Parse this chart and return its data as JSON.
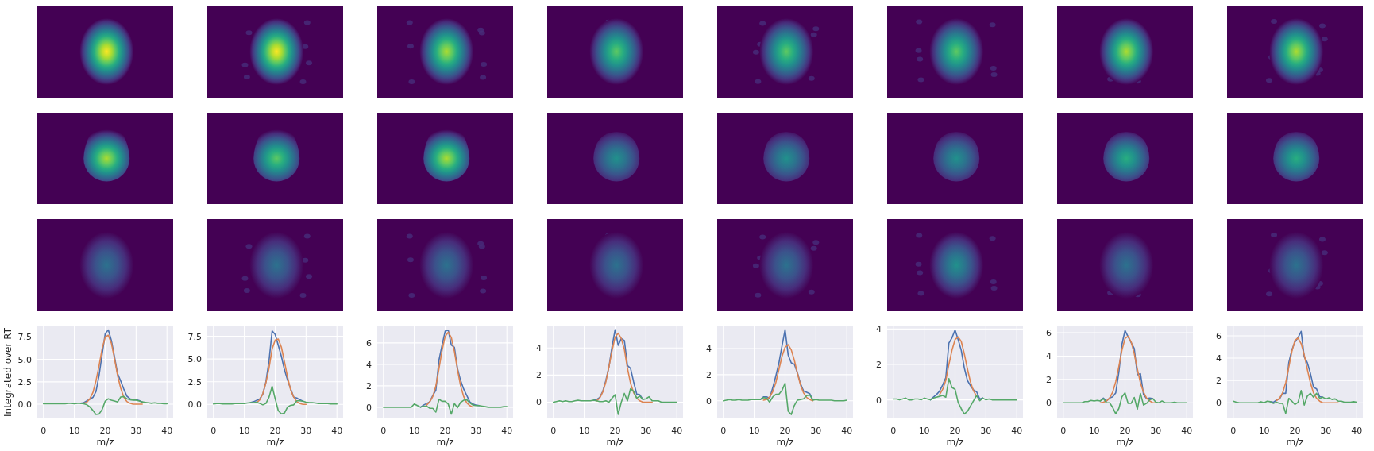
{
  "chart_data": [
    {
      "type": "line",
      "xlabel": "m/z",
      "ylabel": "Integrated over RT",
      "grid": true,
      "xlim": [
        -2,
        42
      ],
      "xticks": [
        0,
        10,
        20,
        30,
        40
      ],
      "ylim": [
        -1.6,
        8.7
      ],
      "yticks": [
        {
          "value": 0,
          "label": "0.0"
        },
        {
          "value": 2.5,
          "label": "2.5"
        },
        {
          "value": 5,
          "label": "5.0"
        },
        {
          "value": 7.5,
          "label": "7.5"
        }
      ],
      "x": [
        0,
        1,
        2,
        3,
        4,
        5,
        6,
        7,
        8,
        9,
        10,
        11,
        12,
        13,
        14,
        15,
        16,
        17,
        18,
        19,
        20,
        21,
        22,
        23,
        24,
        25,
        26,
        27,
        28,
        29,
        30,
        31,
        32,
        33,
        34,
        35,
        36,
        37,
        38,
        39,
        40
      ],
      "series": [
        {
          "color": "#4c72b0",
          "values": [
            null,
            null,
            null,
            null,
            null,
            null,
            null,
            null,
            null,
            null,
            null,
            null,
            0.1,
            0.15,
            0.35,
            0.55,
            0.75,
            1.4,
            3.2,
            5.6,
            7.9,
            8.3,
            7.1,
            5.3,
            3.4,
            2.6,
            1.7,
            0.9,
            0.6,
            0.5,
            0.5,
            0.4,
            0.25,
            null,
            null,
            null,
            null,
            null,
            null,
            null,
            null
          ]
        },
        {
          "color": "#dd8452",
          "values": [
            null,
            null,
            null,
            null,
            null,
            null,
            null,
            null,
            null,
            null,
            null,
            null,
            null,
            0.1,
            0.2,
            0.6,
            1.3,
            2.6,
            4.3,
            6.2,
            7.5,
            7.7,
            6.8,
            5.1,
            3.2,
            1.8,
            0.8,
            0.3,
            0.1,
            0,
            0,
            0,
            0,
            null,
            null,
            null,
            null,
            null,
            null,
            null,
            null
          ]
        },
        {
          "color": "#55a868",
          "values": [
            0.05,
            0.05,
            0.05,
            0.05,
            0.05,
            0.05,
            0.05,
            0.05,
            0.1,
            0.1,
            0.05,
            0.1,
            0.1,
            0.05,
            -0.05,
            -0.3,
            -0.7,
            -1.15,
            -1.1,
            -0.6,
            0.35,
            0.6,
            0.45,
            0.35,
            0.25,
            0.8,
            0.85,
            0.6,
            0.5,
            0.45,
            0.45,
            0.35,
            0.25,
            0.2,
            0.15,
            0.1,
            0.15,
            0.1,
            0.1,
            0.05,
            0.05
          ]
        }
      ]
    },
    {
      "type": "line",
      "xlabel": "m/z",
      "grid": true,
      "xlim": [
        -2,
        42
      ],
      "xticks": [
        0,
        10,
        20,
        30,
        40
      ],
      "ylim": [
        -1.55,
        8.6
      ],
      "yticks": [
        {
          "value": 0,
          "label": "0.0"
        },
        {
          "value": 2.5,
          "label": "2.5"
        },
        {
          "value": 5,
          "label": "5.0"
        },
        {
          "value": 7.5,
          "label": "7.5"
        }
      ],
      "x": [
        0,
        1,
        2,
        3,
        4,
        5,
        6,
        7,
        8,
        9,
        10,
        11,
        12,
        13,
        14,
        15,
        16,
        17,
        18,
        19,
        20,
        21,
        22,
        23,
        24,
        25,
        26,
        27,
        28,
        29,
        30,
        31,
        32,
        33,
        34,
        35,
        36,
        37,
        38,
        39,
        40
      ],
      "series": [
        {
          "color": "#4c72b0",
          "values": [
            null,
            null,
            null,
            null,
            null,
            null,
            null,
            null,
            null,
            null,
            null,
            null,
            0.2,
            0.3,
            0.45,
            0.6,
            1.15,
            2.5,
            4.8,
            8.1,
            7.7,
            6.5,
            5.3,
            3.8,
            2.7,
            1.7,
            0.8,
            0.7,
            0.5,
            0.35,
            null,
            null,
            null,
            null,
            null,
            null,
            null,
            null,
            null,
            null,
            null
          ]
        },
        {
          "color": "#dd8452",
          "values": [
            null,
            null,
            null,
            null,
            null,
            null,
            null,
            null,
            null,
            null,
            null,
            null,
            null,
            null,
            0.2,
            0.5,
            1.2,
            2.4,
            4.0,
            6.1,
            7.1,
            7.2,
            6.3,
            4.7,
            3.0,
            1.6,
            0.8,
            0.3,
            0.1,
            0,
            0,
            null,
            null,
            null,
            null,
            null,
            null,
            null,
            null,
            null,
            null
          ]
        },
        {
          "color": "#55a868",
          "values": [
            0.05,
            0.1,
            0.1,
            0.05,
            0.05,
            0.05,
            0.05,
            0.1,
            0.1,
            0.1,
            0.1,
            0.15,
            0.2,
            0.2,
            0.25,
            0.1,
            -0.05,
            0.1,
            0.8,
            2.0,
            0.6,
            -0.7,
            -1.05,
            -0.95,
            -0.3,
            -0.1,
            -0.05,
            0.4,
            0.4,
            0.35,
            0.25,
            0.2,
            0.2,
            0.15,
            0.1,
            0.1,
            0.1,
            0.1,
            0.05,
            0.05,
            0.05
          ]
        }
      ]
    },
    {
      "type": "line",
      "xlabel": "m/z",
      "grid": true,
      "xlim": [
        -2,
        42
      ],
      "xticks": [
        0,
        10,
        20,
        30,
        40
      ],
      "ylim": [
        -1.05,
        7.55
      ],
      "yticks": [
        0,
        2,
        4,
        6
      ],
      "x": [
        0,
        1,
        2,
        3,
        4,
        5,
        6,
        7,
        8,
        9,
        10,
        11,
        12,
        13,
        14,
        15,
        16,
        17,
        18,
        19,
        20,
        21,
        22,
        23,
        24,
        25,
        26,
        27,
        28,
        29,
        30,
        31,
        32,
        33,
        34,
        35,
        36,
        37,
        38,
        39,
        40
      ],
      "series": [
        {
          "color": "#4c72b0",
          "values": [
            null,
            null,
            null,
            null,
            null,
            null,
            null,
            null,
            null,
            null,
            null,
            null,
            0,
            0.2,
            0.35,
            0.5,
            1.1,
            1.6,
            4.4,
            5.8,
            7.1,
            7.2,
            5.8,
            5.6,
            3.6,
            2.5,
            1.7,
            1.1,
            0.5,
            0.3,
            0.2,
            0.15,
            null,
            null,
            null,
            null,
            null,
            null,
            null,
            null,
            null
          ]
        },
        {
          "color": "#dd8452",
          "values": [
            null,
            null,
            null,
            null,
            null,
            null,
            null,
            null,
            null,
            null,
            null,
            null,
            null,
            null,
            0.2,
            0.5,
            1.0,
            2.0,
            3.6,
            5.3,
            6.6,
            7.0,
            6.5,
            5.2,
            3.5,
            2.0,
            1.0,
            0.4,
            0.15,
            0,
            null,
            null,
            null,
            null,
            null,
            null,
            null,
            null,
            null,
            null,
            null
          ]
        },
        {
          "color": "#55a868",
          "values": [
            0,
            0,
            0,
            0,
            0,
            0,
            0,
            0,
            0,
            0,
            0.3,
            0.15,
            0,
            0.1,
            0.1,
            -0.1,
            -0.1,
            -0.45,
            0.75,
            0.55,
            0.55,
            0.3,
            -0.65,
            0.35,
            -0.05,
            0.45,
            0.65,
            0.7,
            0.4,
            0.2,
            0.15,
            0.15,
            0.1,
            0.05,
            0,
            0,
            0,
            0,
            0,
            0.05,
            0.05
          ]
        }
      ]
    },
    {
      "type": "line",
      "xlabel": "m/z",
      "grid": true,
      "xlim": [
        -2,
        42
      ],
      "xticks": [
        0,
        10,
        20,
        30,
        40
      ],
      "ylim": [
        -1.2,
        5.6
      ],
      "yticks": [
        0,
        2,
        4
      ],
      "x": [
        0,
        1,
        2,
        3,
        4,
        5,
        6,
        7,
        8,
        9,
        10,
        11,
        12,
        13,
        14,
        15,
        16,
        17,
        18,
        19,
        20,
        21,
        22,
        23,
        24,
        25,
        26,
        27,
        28,
        29,
        30,
        31,
        32,
        33,
        34,
        35,
        36,
        37,
        38,
        39,
        40
      ],
      "series": [
        {
          "color": "#4c72b0",
          "values": [
            null,
            null,
            null,
            null,
            null,
            null,
            null,
            null,
            null,
            null,
            null,
            null,
            null,
            0.15,
            0.2,
            0.35,
            0.8,
            1.6,
            2.6,
            4.1,
            5.35,
            4.2,
            4.7,
            4.55,
            2.7,
            2.5,
            1.5,
            0.6,
            0.55,
            0.2,
            null,
            null,
            null,
            null,
            null,
            null,
            null,
            null,
            null,
            null,
            null
          ]
        },
        {
          "color": "#dd8452",
          "values": [
            null,
            null,
            null,
            null,
            null,
            null,
            null,
            null,
            null,
            null,
            null,
            null,
            null,
            null,
            0.1,
            0.3,
            0.75,
            1.5,
            2.6,
            3.8,
            4.8,
            5.1,
            4.7,
            3.9,
            2.5,
            1.4,
            0.7,
            0.3,
            0.1,
            0,
            0,
            0,
            0,
            null,
            null,
            null,
            null,
            null,
            null,
            null,
            null
          ]
        },
        {
          "color": "#55a868",
          "values": [
            0,
            0.05,
            0.1,
            0.05,
            0.1,
            0.05,
            0.05,
            0.1,
            0.15,
            0.1,
            0.1,
            0.1,
            0.1,
            0.15,
            0.1,
            0.05,
            0.05,
            0.1,
            0,
            0.3,
            0.55,
            -0.9,
            0,
            0.65,
            0.1,
            1.0,
            0.8,
            0.3,
            0.45,
            0.2,
            0.25,
            0.4,
            0.1,
            0.1,
            0.1,
            0,
            0,
            0,
            0,
            0,
            0
          ]
        }
      ]
    },
    {
      "type": "line",
      "xlabel": "m/z",
      "grid": true,
      "xlim": [
        -2,
        42
      ],
      "xticks": [
        0,
        10,
        20,
        30,
        40
      ],
      "ylim": [
        -1.35,
        5.7
      ],
      "yticks": [
        0,
        2,
        4
      ],
      "x": [
        0,
        1,
        2,
        3,
        4,
        5,
        6,
        7,
        8,
        9,
        10,
        11,
        12,
        13,
        14,
        15,
        16,
        17,
        18,
        19,
        20,
        21,
        22,
        23,
        24,
        25,
        26,
        27,
        28,
        29,
        30,
        31,
        32,
        33,
        34,
        35,
        36,
        37,
        38,
        39,
        40
      ],
      "series": [
        {
          "color": "#4c72b0",
          "values": [
            null,
            null,
            null,
            null,
            null,
            null,
            null,
            null,
            null,
            null,
            null,
            null,
            0.1,
            0.3,
            0.3,
            0.2,
            1.0,
            1.9,
            2.9,
            4.2,
            5.45,
            3.5,
            2.9,
            2.8,
            2.15,
            1.3,
            0.75,
            0.65,
            0.55,
            0.05,
            null,
            null,
            null,
            null,
            null,
            null,
            null,
            null,
            null,
            null,
            null
          ]
        },
        {
          "color": "#dd8452",
          "values": [
            null,
            null,
            null,
            null,
            null,
            null,
            null,
            null,
            null,
            null,
            null,
            null,
            null,
            0.05,
            0.1,
            0.3,
            0.7,
            1.4,
            2.4,
            3.4,
            4.1,
            4.3,
            3.9,
            3.1,
            2.1,
            1.2,
            0.6,
            0.25,
            0.1,
            0,
            null,
            null,
            null,
            null,
            null,
            null,
            null,
            null,
            null,
            null,
            null
          ]
        },
        {
          "color": "#55a868",
          "values": [
            0,
            0.05,
            0.1,
            0.05,
            0.05,
            0.1,
            0.05,
            0.05,
            0.05,
            0.1,
            0.1,
            0.1,
            0.1,
            0.25,
            0.2,
            -0.1,
            0.3,
            0.5,
            0.5,
            0.8,
            1.35,
            -0.8,
            -1.05,
            -0.35,
            0.05,
            0.1,
            0.15,
            0.4,
            0.45,
            0.05,
            0.1,
            0.05,
            0.05,
            0.05,
            0.05,
            0.05,
            0,
            0,
            0,
            0,
            0.05
          ]
        }
      ]
    },
    {
      "type": "line",
      "xlabel": "m/z",
      "grid": true,
      "xlim": [
        -2,
        42
      ],
      "xticks": [
        0,
        10,
        20,
        30,
        40
      ],
      "ylim": [
        -1.05,
        4.15
      ],
      "yticks": [
        0,
        2,
        4
      ],
      "x": [
        0,
        1,
        2,
        3,
        4,
        5,
        6,
        7,
        8,
        9,
        10,
        11,
        12,
        13,
        14,
        15,
        16,
        17,
        18,
        19,
        20,
        21,
        22,
        23,
        24,
        25,
        26,
        27,
        28,
        29,
        30,
        31,
        32,
        33,
        34,
        35,
        36,
        37,
        38,
        39,
        40
      ],
      "series": [
        {
          "color": "#4c72b0",
          "values": [
            null,
            null,
            null,
            null,
            null,
            null,
            null,
            null,
            null,
            null,
            null,
            null,
            0,
            0.15,
            0.3,
            0.5,
            0.85,
            1.25,
            3.2,
            3.5,
            3.95,
            3.4,
            2.8,
            1.8,
            1.1,
            0.8,
            0.55,
            0.45,
            0.05,
            0.1,
            null,
            null,
            null,
            null,
            null,
            null,
            null,
            null,
            null,
            null,
            null
          ]
        },
        {
          "color": "#dd8452",
          "values": [
            null,
            null,
            null,
            null,
            null,
            null,
            null,
            null,
            null,
            null,
            null,
            null,
            null,
            null,
            null,
            0.3,
            0.6,
            1.1,
            2.0,
            2.8,
            3.4,
            3.55,
            3.3,
            2.6,
            1.75,
            1.0,
            0.5,
            0.2,
            null,
            null,
            null,
            null,
            null,
            null,
            null,
            null,
            null,
            null,
            null,
            null,
            null
          ]
        },
        {
          "color": "#55a868",
          "values": [
            0.05,
            0.05,
            0,
            0.05,
            0.1,
            0,
            0,
            0.05,
            0.05,
            0,
            0.1,
            0.05,
            0,
            0.1,
            0.15,
            0.2,
            0.25,
            0.15,
            1.2,
            0.7,
            0.6,
            -0.15,
            -0.5,
            -0.8,
            -0.65,
            -0.35,
            -0.05,
            0.25,
            -0.05,
            0.1,
            0,
            0.05,
            0,
            0,
            0,
            0,
            0,
            0,
            0,
            0,
            0
          ]
        }
      ]
    },
    {
      "type": "line",
      "xlabel": "m/z",
      "grid": true,
      "xlim": [
        -2,
        42
      ],
      "xticks": [
        0,
        10,
        20,
        30,
        40
      ],
      "ylim": [
        -1.35,
        6.55
      ],
      "yticks": [
        0,
        2,
        4,
        6
      ],
      "x": [
        0,
        1,
        2,
        3,
        4,
        5,
        6,
        7,
        8,
        9,
        10,
        11,
        12,
        13,
        14,
        15,
        16,
        17,
        18,
        19,
        20,
        21,
        22,
        23,
        24,
        25,
        26,
        27,
        28,
        29,
        30,
        31,
        32,
        33,
        34,
        35,
        36,
        37,
        38,
        39,
        40
      ],
      "series": [
        {
          "color": "#4c72b0",
          "values": [
            null,
            null,
            null,
            null,
            null,
            null,
            null,
            null,
            null,
            null,
            null,
            null,
            0.15,
            0.4,
            0.15,
            0.4,
            0.5,
            0.85,
            2.6,
            5.0,
            6.2,
            5.65,
            5.15,
            4.65,
            2.4,
            2.5,
            0.7,
            0.35,
            0.4,
            0.35,
            null,
            null,
            null,
            null,
            null,
            null,
            null,
            null,
            null,
            null,
            null
          ]
        },
        {
          "color": "#dd8452",
          "values": [
            null,
            null,
            null,
            null,
            null,
            null,
            null,
            null,
            null,
            null,
            null,
            null,
            0,
            0.05,
            0.15,
            0.4,
            0.9,
            1.8,
            3.1,
            4.5,
            5.5,
            5.7,
            5.2,
            4.2,
            2.9,
            1.7,
            0.9,
            0.4,
            0.15,
            0,
            0,
            null,
            null,
            null,
            null,
            null,
            null,
            null,
            null,
            null,
            null
          ]
        },
        {
          "color": "#55a868",
          "values": [
            0,
            0,
            0,
            0,
            0,
            0,
            0,
            0.1,
            0.1,
            0.2,
            0.15,
            0.2,
            0.15,
            0.35,
            0,
            0,
            -0.4,
            -0.95,
            -0.5,
            0.5,
            0.85,
            -0.05,
            -0.05,
            0.45,
            -0.55,
            0.8,
            -0.2,
            -0.05,
            0.25,
            0.35,
            0.05,
            0,
            0.15,
            0,
            0,
            0,
            0.05,
            0,
            0,
            0,
            0
          ]
        }
      ]
    },
    {
      "type": "line",
      "xlabel": "m/z",
      "grid": true,
      "xlim": [
        -2,
        42
      ],
      "xticks": [
        0,
        10,
        20,
        30,
        40
      ],
      "ylim": [
        -1.4,
        6.85
      ],
      "yticks": [
        0,
        2,
        4,
        6
      ],
      "x": [
        0,
        1,
        2,
        3,
        4,
        5,
        6,
        7,
        8,
        9,
        10,
        11,
        12,
        13,
        14,
        15,
        16,
        17,
        18,
        19,
        20,
        21,
        22,
        23,
        24,
        25,
        26,
        27,
        28,
        29,
        30,
        31,
        32,
        33,
        34,
        35,
        36,
        37,
        38,
        39,
        40
      ],
      "series": [
        {
          "color": "#4c72b0",
          "values": [
            null,
            null,
            null,
            null,
            null,
            null,
            null,
            null,
            null,
            null,
            null,
            null,
            0.1,
            0.05,
            0.25,
            0.35,
            0.85,
            0.85,
            3.6,
            4.75,
            5.45,
            5.85,
            6.4,
            4.1,
            3.6,
            2.65,
            1.4,
            1.25,
            0.55,
            0.5,
            null,
            null,
            null,
            null,
            null,
            null,
            null,
            null,
            null,
            null,
            null
          ]
        },
        {
          "color": "#dd8452",
          "values": [
            null,
            null,
            null,
            null,
            null,
            null,
            null,
            null,
            null,
            null,
            null,
            null,
            null,
            null,
            0.2,
            0.4,
            0.9,
            1.8,
            3.2,
            4.6,
            5.6,
            5.8,
            5.3,
            4.3,
            3.0,
            1.8,
            0.9,
            0.4,
            0.15,
            0,
            0,
            0,
            0,
            0,
            0,
            null,
            null,
            null,
            null,
            null,
            null
          ]
        },
        {
          "color": "#55a868",
          "values": [
            0.15,
            0.05,
            0,
            0,
            0,
            0,
            0,
            0,
            0,
            0.1,
            0,
            0.15,
            0.1,
            -0.05,
            0.05,
            -0.05,
            -0.05,
            -0.95,
            0.4,
            0.15,
            -0.15,
            0.05,
            1.1,
            -0.2,
            0.6,
            0.85,
            0.5,
            0.85,
            0.4,
            0.5,
            0.35,
            0.45,
            0.3,
            0.35,
            0.15,
            0.15,
            0.05,
            0.05,
            0.05,
            0.1,
            0.05
          ]
        }
      ]
    }
  ]
}
